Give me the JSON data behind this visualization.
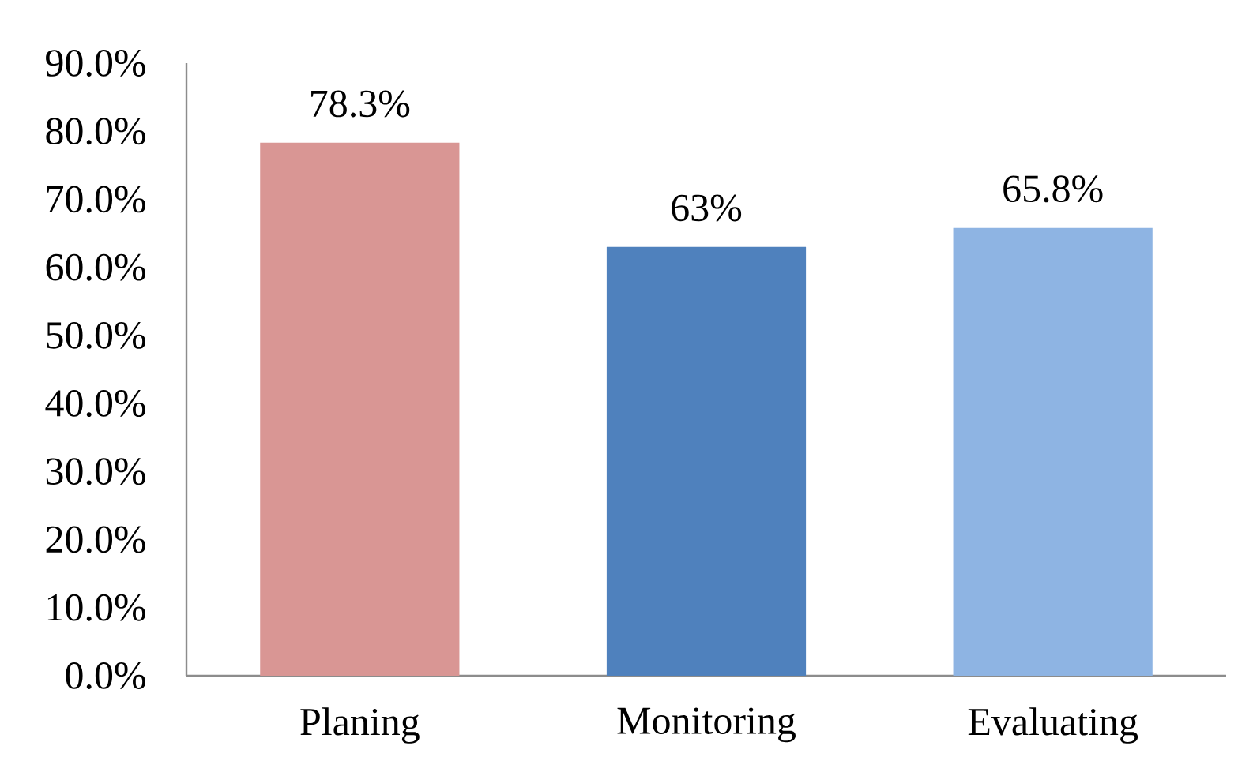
{
  "chart_data": {
    "type": "bar",
    "categories": [
      "Planing",
      "Monitoring",
      "Evaluating"
    ],
    "values": [
      78.3,
      63,
      65.8
    ],
    "colors": [
      "#d99694",
      "#4f81bd",
      "#8eb4e3"
    ],
    "value_labels": [
      "78.3%",
      "63%",
      "65.8%"
    ],
    "ylim": [
      0,
      90
    ],
    "yticks": [
      {
        "value": 0,
        "label": "0.0%"
      },
      {
        "value": 10,
        "label": "10.0%"
      },
      {
        "value": 20,
        "label": "20.0%"
      },
      {
        "value": 30,
        "label": "30.0%"
      },
      {
        "value": 40,
        "label": "40.0%"
      },
      {
        "value": 50,
        "label": "50.0%"
      },
      {
        "value": 60,
        "label": "60.0%"
      },
      {
        "value": 70,
        "label": "70.0%"
      },
      {
        "value": 80,
        "label": "80.0%"
      },
      {
        "value": 90,
        "label": "90.0%"
      }
    ]
  }
}
